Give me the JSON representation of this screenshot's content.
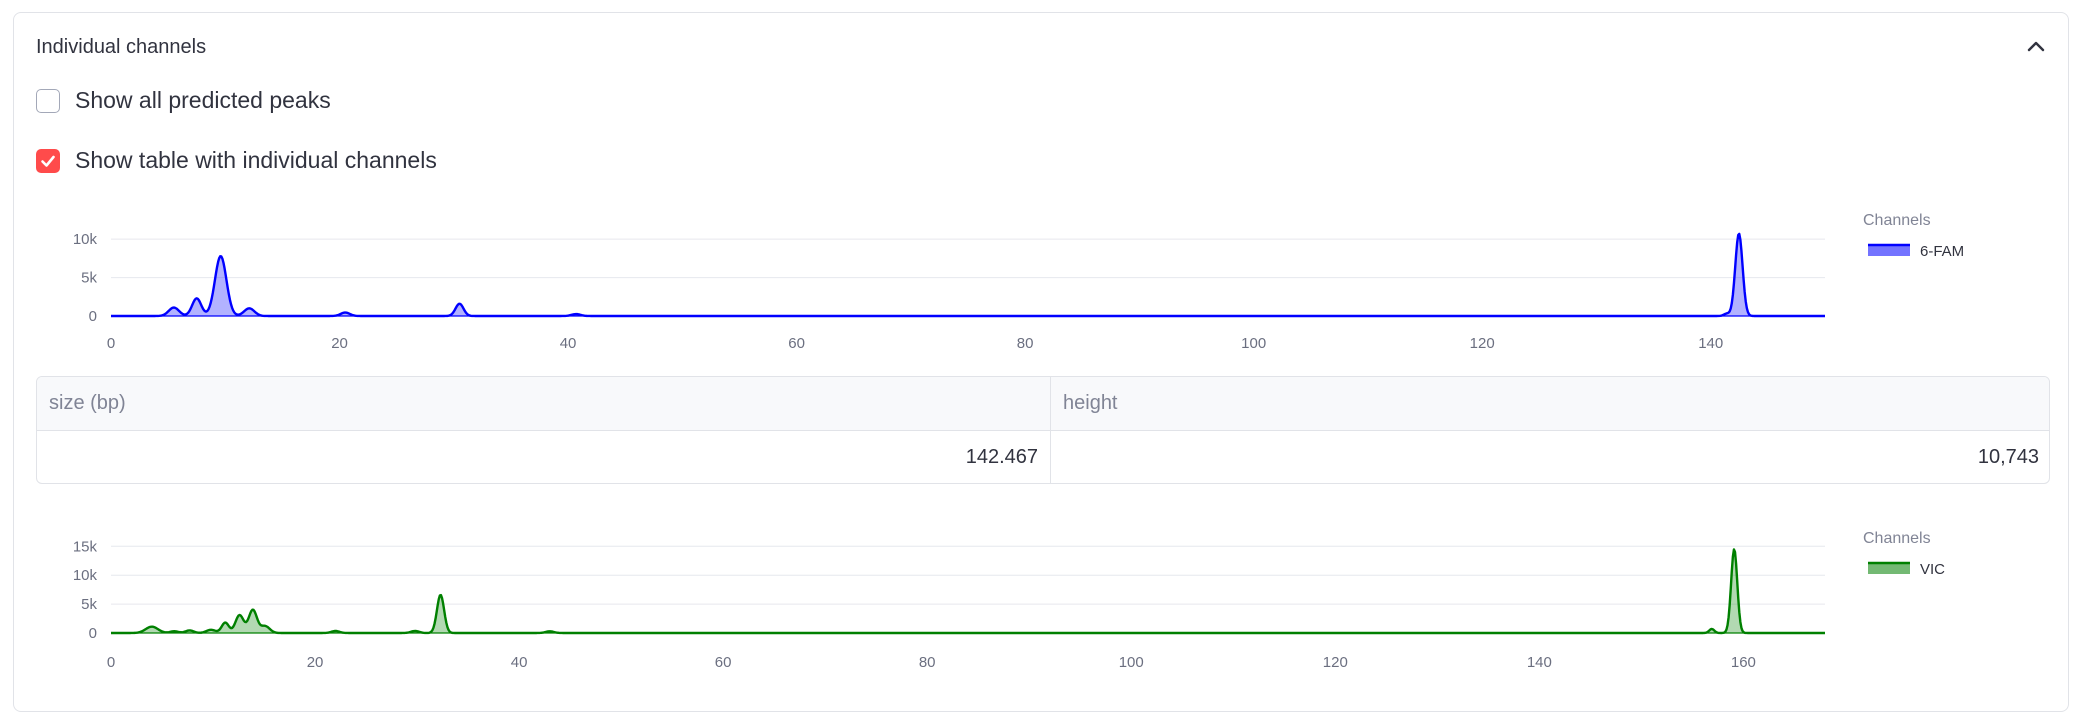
{
  "expander": {
    "title": "Individual channels"
  },
  "checkboxes": [
    {
      "label": "Show all predicted peaks",
      "checked": false
    },
    {
      "label": "Show table with individual channels",
      "checked": true
    }
  ],
  "colors": {
    "accent": "#ff4b4b",
    "fam": "#0000ff",
    "vic": "#008000"
  },
  "icons": {
    "collapse": "chevron-up-icon",
    "checked": "checkmark-icon"
  },
  "table": {
    "headers": [
      "size (bp)",
      "height"
    ],
    "rows": [
      [
        "142.467",
        "10,743"
      ]
    ]
  },
  "chart_data": [
    {
      "type": "area",
      "legend_title": "Channels",
      "legend_position": "right",
      "grid": true,
      "series": [
        {
          "name": "6-FAM",
          "color": "#0000ff",
          "peaks": [
            {
              "x": 5.5,
              "y": 1100,
              "w": 0.45
            },
            {
              "x": 7.5,
              "y": 2300,
              "w": 0.4
            },
            {
              "x": 9.6,
              "y": 7800,
              "w": 0.5
            },
            {
              "x": 12.1,
              "y": 1000,
              "w": 0.45
            },
            {
              "x": 20.5,
              "y": 450,
              "w": 0.4
            },
            {
              "x": 30.5,
              "y": 1600,
              "w": 0.35
            },
            {
              "x": 40.7,
              "y": 250,
              "w": 0.4
            },
            {
              "x": 141.4,
              "y": 300,
              "w": 0.25
            },
            {
              "x": 142.467,
              "y": 10743,
              "w": 0.32
            }
          ]
        }
      ],
      "xlim": [
        0,
        150
      ],
      "xticks": [
        0,
        20,
        40,
        60,
        80,
        100,
        120,
        140
      ],
      "ylim": [
        0,
        11000
      ],
      "yticks": [
        0,
        5000,
        10000
      ],
      "ytick_labels": [
        "0",
        "5k",
        "10k"
      ]
    },
    {
      "type": "area",
      "legend_title": "Channels",
      "legend_position": "right",
      "grid": true,
      "series": [
        {
          "name": "VIC",
          "color": "#008000",
          "peaks": [
            {
              "x": 4.0,
              "y": 1100,
              "w": 0.6
            },
            {
              "x": 6.2,
              "y": 300,
              "w": 0.4
            },
            {
              "x": 7.7,
              "y": 450,
              "w": 0.4
            },
            {
              "x": 9.8,
              "y": 550,
              "w": 0.45
            },
            {
              "x": 11.2,
              "y": 1800,
              "w": 0.35
            },
            {
              "x": 12.6,
              "y": 3100,
              "w": 0.4
            },
            {
              "x": 13.9,
              "y": 4000,
              "w": 0.4
            },
            {
              "x": 15.1,
              "y": 1200,
              "w": 0.45
            },
            {
              "x": 22.0,
              "y": 350,
              "w": 0.4
            },
            {
              "x": 29.8,
              "y": 350,
              "w": 0.4
            },
            {
              "x": 32.3,
              "y": 6600,
              "w": 0.35
            },
            {
              "x": 43.0,
              "y": 300,
              "w": 0.4
            },
            {
              "x": 156.9,
              "y": 700,
              "w": 0.25
            },
            {
              "x": 159.1,
              "y": 14500,
              "w": 0.3
            }
          ]
        }
      ],
      "xlim": [
        0,
        168
      ],
      "xticks": [
        0,
        20,
        40,
        60,
        80,
        100,
        120,
        140,
        160
      ],
      "ylim": [
        0,
        16000
      ],
      "yticks": [
        0,
        5000,
        10000,
        15000
      ],
      "ytick_labels": [
        "0",
        "5k",
        "10k",
        "15k"
      ]
    }
  ]
}
